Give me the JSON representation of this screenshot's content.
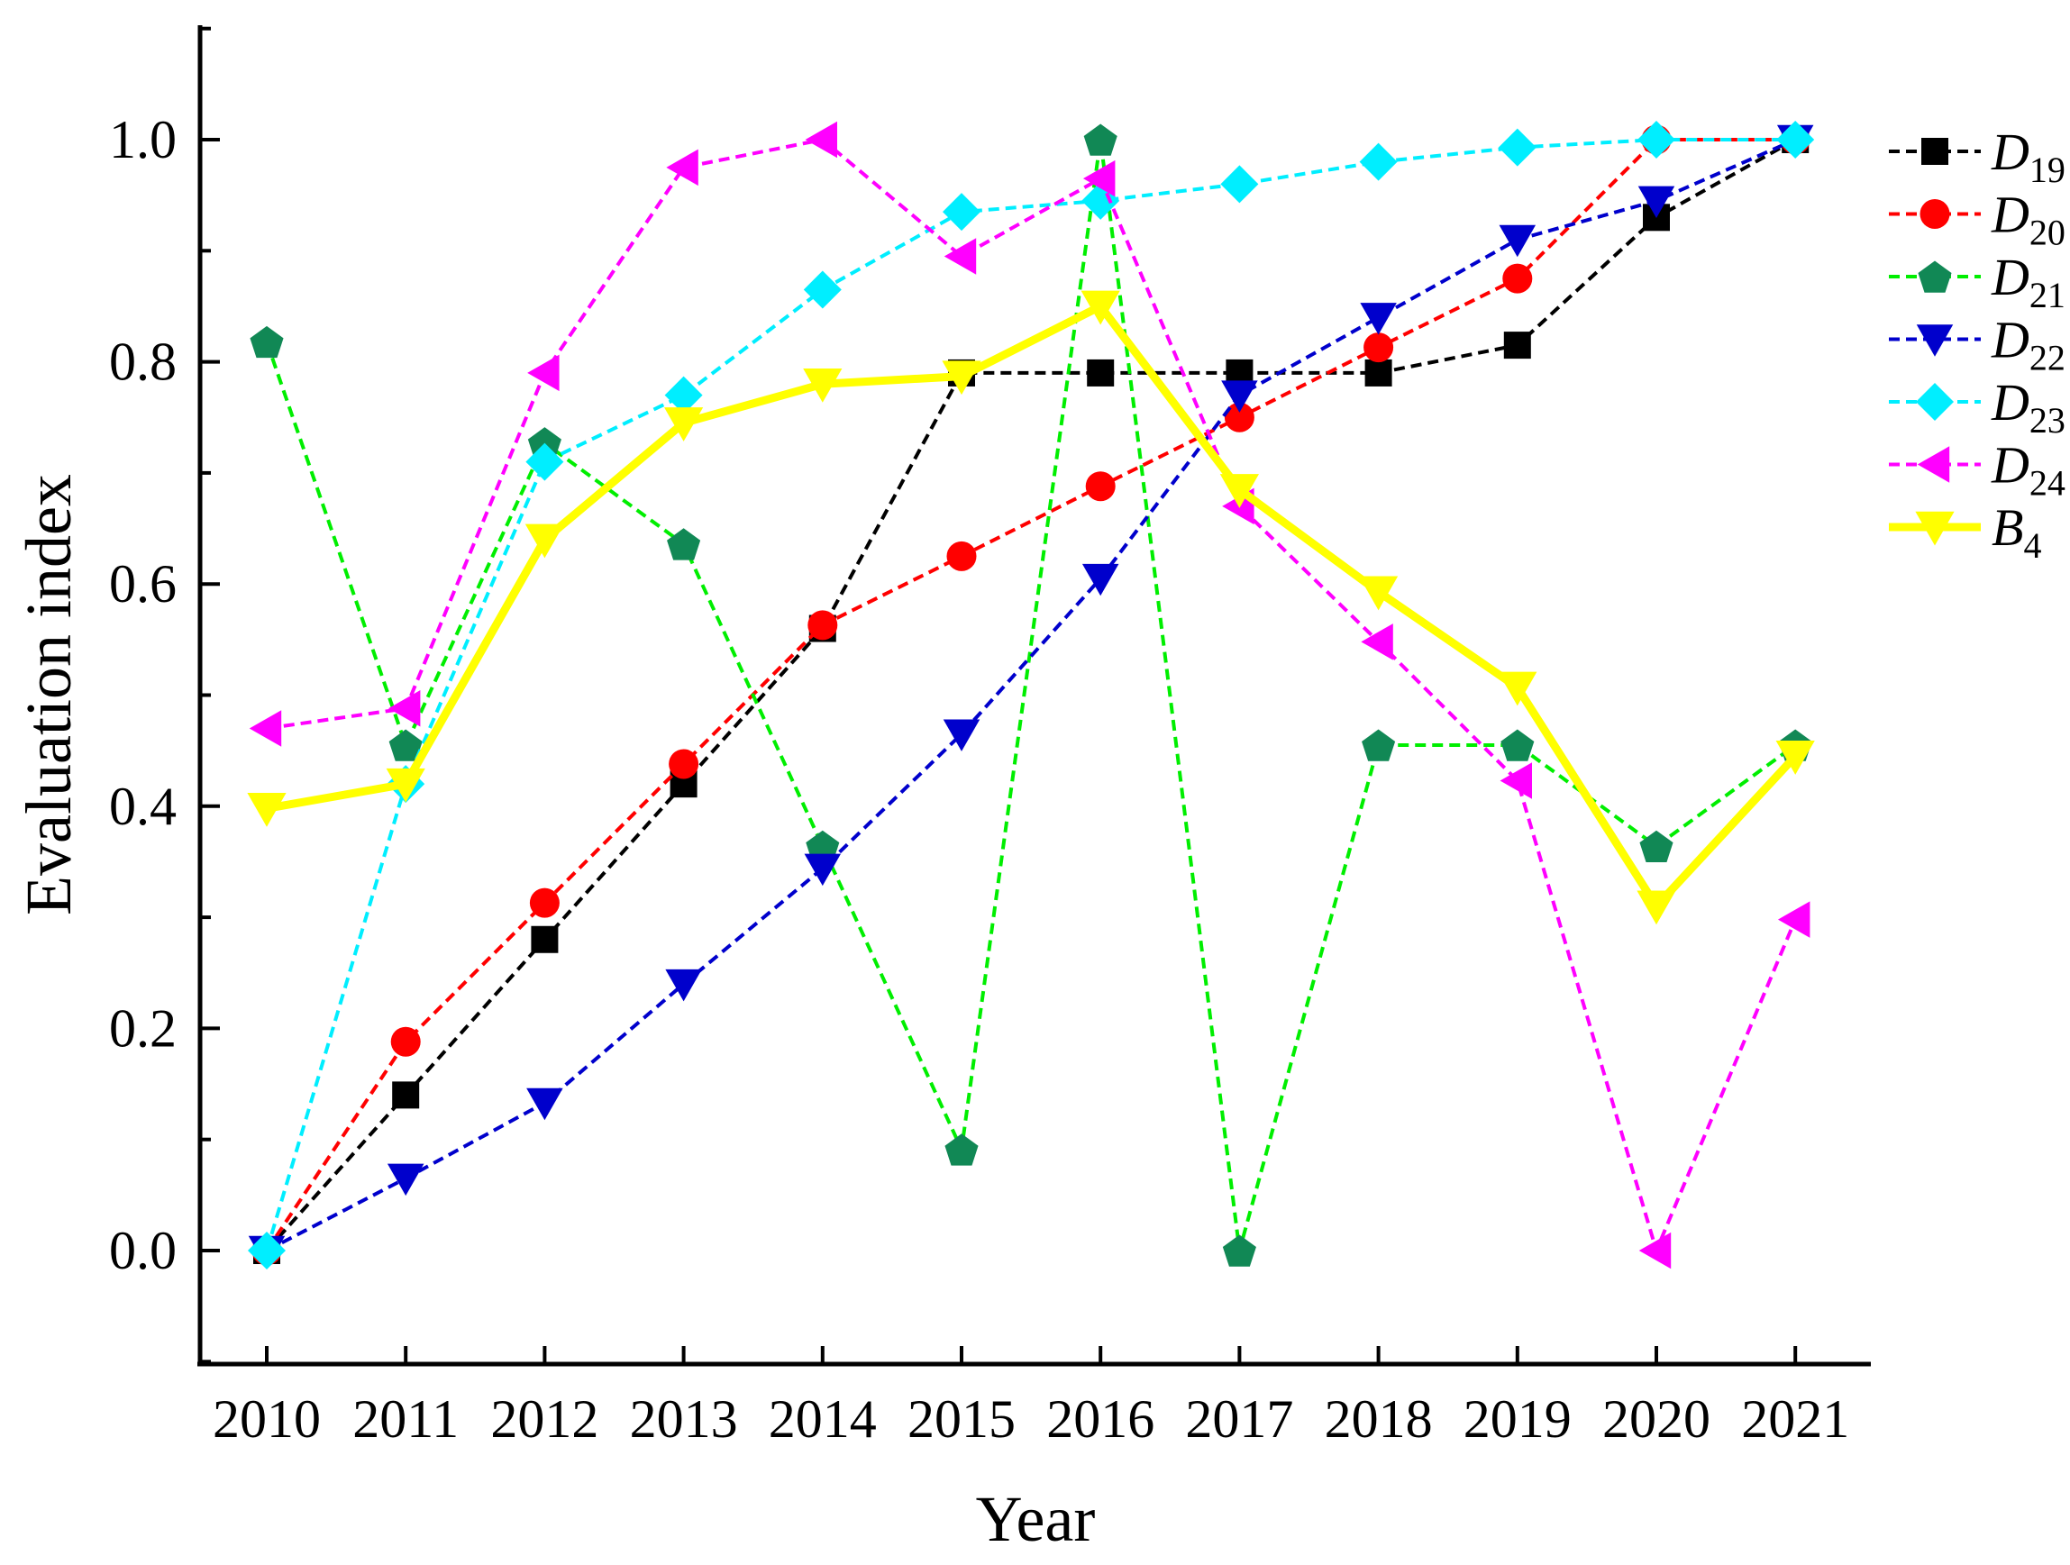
{
  "chart_data": {
    "type": "line",
    "title": "",
    "xlabel": "Year",
    "ylabel": "Evaluation index",
    "categories": [
      "2010",
      "2011",
      "2012",
      "2013",
      "2014",
      "2015",
      "2016",
      "2017",
      "2018",
      "2019",
      "2020",
      "2021"
    ],
    "ylim": [
      -0.1,
      1.1
    ],
    "yticks": [
      "0.0",
      "0.2",
      "0.4",
      "0.6",
      "0.8",
      "1.0"
    ],
    "ytick_values": [
      0.0,
      0.2,
      0.4,
      0.6,
      0.8,
      1.0
    ],
    "legend_position": "right",
    "series": [
      {
        "name": "D19",
        "base": "D",
        "sub": "19",
        "color": "#000000",
        "marker": "square",
        "style": "dashed",
        "values": [
          0.0,
          0.14,
          0.28,
          0.42,
          0.56,
          0.79,
          0.79,
          0.79,
          0.79,
          0.815,
          0.93,
          1.0
        ]
      },
      {
        "name": "D20",
        "base": "D",
        "sub": "20",
        "color": "#ff0000",
        "marker": "circle",
        "style": "dashed",
        "values": [
          0.0,
          0.188,
          0.313,
          0.438,
          0.563,
          0.625,
          0.688,
          0.75,
          0.813,
          0.875,
          1.0,
          1.0
        ]
      },
      {
        "name": "D21",
        "base": "D",
        "sub": "21",
        "color": "#00ee00",
        "marker_color": "#118855",
        "marker": "pentagon",
        "style": "dashed",
        "values": [
          0.818,
          0.455,
          0.727,
          0.636,
          0.364,
          0.091,
          1.0,
          0.0,
          0.455,
          0.455,
          0.364,
          0.455
        ]
      },
      {
        "name": "D22",
        "base": "D",
        "sub": "22",
        "color": "#0000cc",
        "marker": "triangle-down",
        "style": "dashed",
        "values": [
          0.0,
          0.065,
          0.133,
          0.24,
          0.344,
          0.465,
          0.605,
          0.77,
          0.84,
          0.91,
          0.945,
          1.0
        ]
      },
      {
        "name": "D23",
        "base": "D",
        "sub": "23",
        "color": "#00eeff",
        "marker": "diamond",
        "style": "dashed",
        "values": [
          0.0,
          0.42,
          0.71,
          0.77,
          0.865,
          0.935,
          0.945,
          0.96,
          0.98,
          0.993,
          1.0,
          1.0
        ]
      },
      {
        "name": "D24",
        "base": "D",
        "sub": "24",
        "color": "#ff00ff",
        "marker": "triangle-left",
        "style": "dashed",
        "values": [
          0.47,
          0.488,
          0.79,
          0.975,
          1.0,
          0.895,
          0.965,
          0.67,
          0.548,
          0.423,
          0.0,
          0.298
        ]
      },
      {
        "name": "B4",
        "base": "B",
        "sub": "4",
        "color": "#ffff00",
        "marker": "triangle-down",
        "style": "solid",
        "values": [
          0.398,
          0.42,
          0.64,
          0.745,
          0.78,
          0.787,
          0.85,
          0.685,
          0.593,
          0.507,
          0.31,
          0.445
        ]
      }
    ]
  }
}
